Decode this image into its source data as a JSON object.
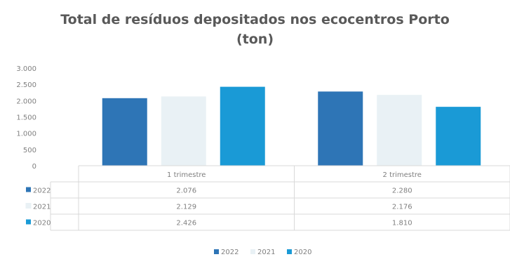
{
  "chart_data": {
    "type": "bar",
    "title": "Total de resíduos depositados nos ecocentros Porto (ton)",
    "title_lines": [
      "Total de resíduos depositados nos ecocentros Porto",
      "(ton)"
    ],
    "categories": [
      "1 trimestre",
      "2 trimestre"
    ],
    "series": [
      {
        "name": "2022",
        "values": [
          2076,
          2280
        ],
        "labels": [
          "2.076",
          "2.280"
        ],
        "color": "#2e75b6"
      },
      {
        "name": "2021",
        "values": [
          2129,
          2176
        ],
        "labels": [
          "2.129",
          "2.176"
        ],
        "color": "#e9f1f5"
      },
      {
        "name": "2020",
        "values": [
          2426,
          1810
        ],
        "labels": [
          "2.426",
          "1.810"
        ],
        "color": "#1a9ad6"
      }
    ],
    "ylim": [
      0,
      3000
    ],
    "yticks": [
      0,
      500,
      1000,
      1500,
      2000,
      2500,
      3000
    ],
    "ytick_labels": [
      "0",
      "500",
      "1.000",
      "1.500",
      "2.000",
      "2.500",
      "3.000"
    ],
    "xlabel": "",
    "ylabel": "",
    "grid": false,
    "legend": "bottom",
    "data_table": true
  }
}
